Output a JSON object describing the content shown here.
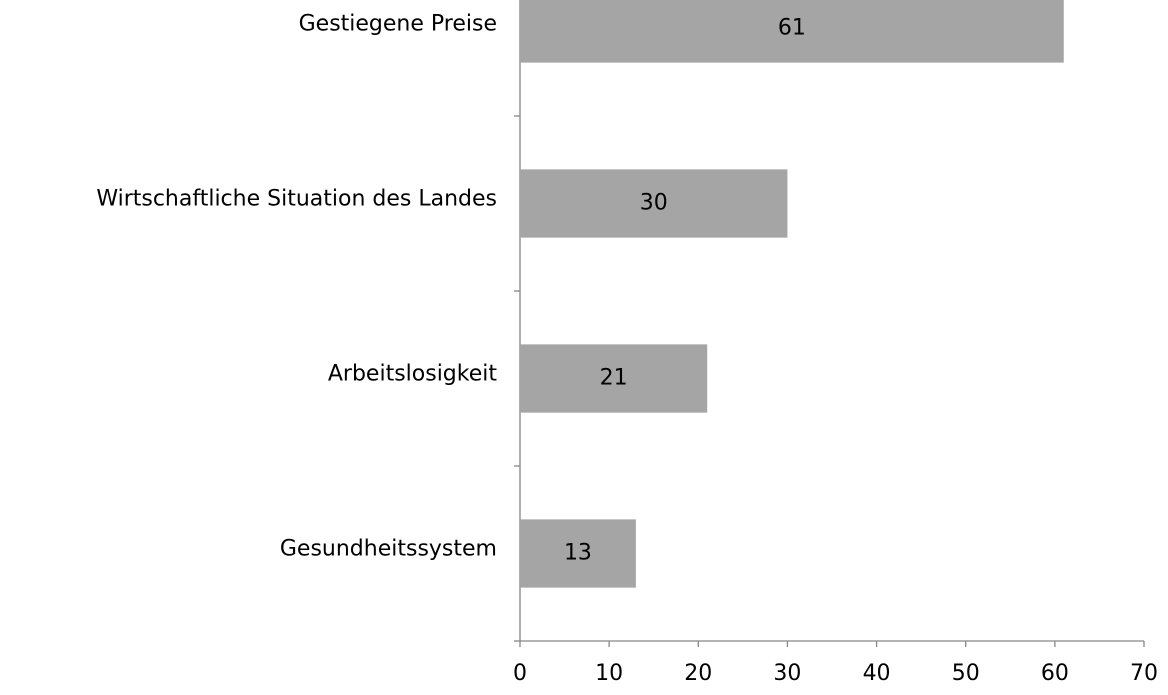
{
  "chart_data": {
    "type": "hbar",
    "categories": [
      "Gestiegene Preise",
      "Wirtschaftliche Situation des Landes",
      "Arbeitslosigkeit",
      "Gesundheitssystem"
    ],
    "values": [
      61,
      30,
      21,
      13
    ],
    "color": "#a5a5a5",
    "xlim": [
      0,
      70
    ],
    "xticks": [
      0,
      10,
      20,
      30,
      40,
      50,
      60,
      70
    ],
    "grid": false
  }
}
